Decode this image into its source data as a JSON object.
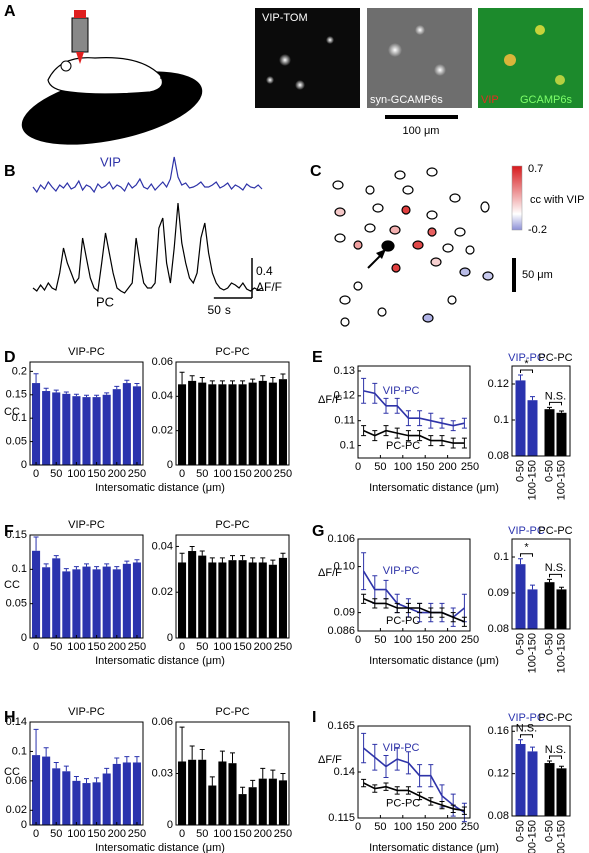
{
  "panel_labels": [
    "A",
    "B",
    "C",
    "D",
    "E",
    "F",
    "G",
    "H",
    "I"
  ],
  "panel_a": {
    "image_labels": [
      "VIP-TOM",
      "syn-GCAMP6s"
    ],
    "merge_labels": [
      "VIP",
      "GCAMP6s"
    ],
    "scale_bar": "100 μm"
  },
  "panel_c": {
    "colorbar_ticks": [
      0.7,
      -0.2
    ],
    "colorbar_label": "cc with VIP",
    "scale_bar": "50 μm"
  },
  "chart_data": [
    {
      "type": "trace",
      "x": [
        0,
        5,
        10,
        15,
        20,
        25,
        30,
        35,
        40,
        45,
        50,
        55,
        60,
        65,
        70,
        75,
        80,
        85,
        90,
        95,
        100,
        105,
        110,
        115,
        120,
        125,
        130,
        135,
        140,
        145,
        150,
        155,
        160,
        165,
        170,
        175,
        180,
        185,
        190,
        195,
        200,
        205,
        210,
        215,
        220,
        225,
        230,
        235,
        240,
        245,
        250,
        255,
        260,
        265,
        270,
        275,
        280,
        285,
        290,
        295,
        300
      ],
      "series": [
        {
          "name": "VIP",
          "color": "#2e33a8",
          "values": [
            0.1,
            0.05,
            0.12,
            0.08,
            0.15,
            0.1,
            0.06,
            0.12,
            0.09,
            0.14,
            0.08,
            0.1,
            0.16,
            0.07,
            0.12,
            0.1,
            0.05,
            0.13,
            0.09,
            0.11,
            0.15,
            0.08,
            0.12,
            0.1,
            0.06,
            0.14,
            0.09,
            0.12,
            0.18,
            0.1,
            0.08,
            0.13,
            0.07,
            0.11,
            0.15,
            0.1,
            0.18,
            0.4,
            0.2,
            0.12,
            0.14,
            0.09,
            0.1,
            0.12,
            0.15,
            0.1,
            0.1,
            0.12,
            0.15,
            0.09,
            0.11,
            0.14,
            0.08,
            0.12,
            0.1,
            0.07,
            0.13,
            0.1,
            0.09,
            0.12,
            0.08
          ]
        },
        {
          "name": "PC",
          "color": "#000000",
          "values": [
            0.05,
            0.02,
            0.08,
            0.03,
            0.1,
            0.05,
            0.03,
            0.2,
            0.45,
            0.3,
            0.2,
            0.1,
            0.15,
            0.55,
            0.35,
            0.15,
            0.05,
            0.02,
            0.3,
            0.6,
            0.4,
            0.2,
            0.05,
            0.02,
            0.0,
            0.05,
            0.1,
            0.55,
            0.3,
            0.1,
            0.05,
            0.05,
            0.1,
            0.65,
            0.75,
            0.3,
            0.1,
            0.45,
            0.9,
            0.5,
            0.3,
            0.15,
            0.1,
            0.2,
            0.55,
            0.7,
            0.4,
            0.2,
            0.1,
            0.05,
            0.03,
            0.05,
            0.1,
            0.08,
            0.05,
            0.1,
            0.04,
            0.02,
            0.05,
            0.03,
            0.05
          ]
        }
      ],
      "y_scale": {
        "value": 0.4,
        "unit": "ΔF/F"
      },
      "x_scale": {
        "value": 50,
        "unit": "s"
      }
    },
    {
      "type": "bar",
      "title": "VIP-PC",
      "ylabel": "CC",
      "xlabel": "Intersomatic distance (μm)",
      "color": "#2a33ae",
      "x": [
        0,
        25,
        50,
        75,
        100,
        125,
        150,
        175,
        200,
        225,
        250
      ],
      "values": [
        0.175,
        0.158,
        0.155,
        0.152,
        0.147,
        0.145,
        0.145,
        0.15,
        0.162,
        0.175,
        0.168
      ],
      "errors": [
        0.02,
        0.006,
        0.005,
        0.004,
        0.004,
        0.004,
        0.004,
        0.004,
        0.006,
        0.006,
        0.006
      ],
      "xlim": [
        -15,
        265
      ],
      "ylim": [
        0,
        0.22
      ],
      "xticks": [
        0,
        50,
        100,
        150,
        200,
        250
      ],
      "yticks": [
        0,
        0.05,
        0.1,
        0.15,
        0.2
      ]
    },
    {
      "type": "bar",
      "title": "PC-PC",
      "color": "#000000",
      "x": [
        0,
        25,
        50,
        75,
        100,
        125,
        150,
        175,
        200,
        225,
        250
      ],
      "values": [
        0.047,
        0.049,
        0.048,
        0.047,
        0.047,
        0.047,
        0.047,
        0.048,
        0.049,
        0.048,
        0.05
      ],
      "errors": [
        0.007,
        0.003,
        0.003,
        0.002,
        0.002,
        0.002,
        0.002,
        0.002,
        0.003,
        0.003,
        0.003
      ],
      "xlim": [
        -15,
        265
      ],
      "ylim": [
        0,
        0.06
      ],
      "xticks": [
        0,
        50,
        100,
        150,
        200,
        250
      ],
      "yticks": [
        0,
        0.02,
        0.04,
        0.06
      ]
    },
    {
      "type": "line",
      "ylabel": "ΔF/F",
      "xlabel": "Intersomatic distance (μm)",
      "x": [
        12.5,
        37.5,
        62.5,
        87.5,
        112.5,
        137.5,
        162.5,
        187.5,
        212.5,
        237.5
      ],
      "series": [
        {
          "name": "VIP-PC",
          "color": "#2e33a8",
          "values": [
            0.122,
            0.121,
            0.116,
            0.116,
            0.111,
            0.111,
            0.11,
            0.109,
            0.108,
            0.109
          ],
          "errors": [
            0.005,
            0.004,
            0.003,
            0.003,
            0.003,
            0.003,
            0.003,
            0.002,
            0.002,
            0.002
          ]
        },
        {
          "name": "PC-PC",
          "color": "#000000",
          "values": [
            0.106,
            0.104,
            0.106,
            0.105,
            0.104,
            0.104,
            0.102,
            0.102,
            0.101,
            0.101
          ],
          "errors": [
            0.002,
            0.002,
            0.002,
            0.002,
            0.002,
            0.002,
            0.002,
            0.002,
            0.002,
            0.002
          ]
        }
      ],
      "xlim": [
        0,
        250
      ],
      "ylim": [
        0.095,
        0.132
      ],
      "xticks": [
        0,
        50,
        100,
        150,
        200,
        250
      ],
      "yticks": [
        0.1,
        0.11,
        0.12,
        0.13
      ]
    },
    {
      "type": "grouped_bar",
      "categories": [
        "0-50",
        "100-150"
      ],
      "series": [
        {
          "name": "VIP-PC",
          "color": "#2a33ae",
          "values": [
            0.122,
            0.111
          ],
          "errors": [
            0.003,
            0.002
          ]
        },
        {
          "name": "PC-PC",
          "color": "#000000",
          "values": [
            0.106,
            0.104
          ],
          "errors": [
            0.001,
            0.001
          ]
        }
      ],
      "annotations": [
        "*",
        "N.S."
      ],
      "ylim": [
        0.08,
        0.13
      ],
      "yticks": [
        0.08,
        0.1,
        0.12
      ]
    },
    {
      "type": "bar",
      "title": "VIP-PC",
      "ylabel": "CC",
      "xlabel": "Intersomatic distance (μm)",
      "color": "#2a33ae",
      "x": [
        0,
        25,
        50,
        75,
        100,
        125,
        150,
        175,
        200,
        225,
        250
      ],
      "values": [
        0.127,
        0.103,
        0.116,
        0.097,
        0.1,
        0.104,
        0.1,
        0.104,
        0.1,
        0.108,
        0.11
      ],
      "errors": [
        0.02,
        0.005,
        0.004,
        0.004,
        0.004,
        0.004,
        0.004,
        0.004,
        0.004,
        0.004,
        0.004
      ],
      "xlim": [
        -15,
        265
      ],
      "ylim": [
        0,
        0.15
      ],
      "xticks": [
        0,
        50,
        100,
        150,
        200,
        250
      ],
      "yticks": [
        0,
        0.05,
        0.1,
        0.15
      ]
    },
    {
      "type": "bar",
      "title": "PC-PC",
      "color": "#000000",
      "x": [
        0,
        25,
        50,
        75,
        100,
        125,
        150,
        175,
        200,
        225,
        250
      ],
      "values": [
        0.033,
        0.038,
        0.036,
        0.033,
        0.033,
        0.034,
        0.034,
        0.033,
        0.033,
        0.032,
        0.035
      ],
      "errors": [
        0.004,
        0.002,
        0.002,
        0.002,
        0.002,
        0.002,
        0.002,
        0.002,
        0.002,
        0.002,
        0.002
      ],
      "xlim": [
        -15,
        265
      ],
      "ylim": [
        0,
        0.045
      ],
      "xticks": [
        0,
        50,
        100,
        150,
        200,
        250
      ],
      "yticks": [
        0,
        0.02,
        0.04
      ]
    },
    {
      "type": "line",
      "ylabel": "ΔF/F",
      "xlabel": "Intersomatic distance (μm)",
      "x": [
        12.5,
        37.5,
        62.5,
        87.5,
        112.5,
        137.5,
        162.5,
        187.5,
        212.5,
        237.5
      ],
      "series": [
        {
          "name": "VIP-PC",
          "color": "#2e33a8",
          "values": [
            0.099,
            0.095,
            0.095,
            0.092,
            0.091,
            0.09,
            0.09,
            0.09,
            0.089,
            0.091
          ],
          "errors": [
            0.004,
            0.003,
            0.002,
            0.002,
            0.002,
            0.002,
            0.002,
            0.002,
            0.002,
            0.003
          ]
        },
        {
          "name": "PC-PC",
          "color": "#000000",
          "values": [
            0.093,
            0.092,
            0.092,
            0.091,
            0.091,
            0.091,
            0.09,
            0.09,
            0.089,
            0.088
          ],
          "errors": [
            0.001,
            0.001,
            0.001,
            0.001,
            0.001,
            0.001,
            0.001,
            0.001,
            0.001,
            0.001
          ]
        }
      ],
      "xlim": [
        0,
        250
      ],
      "ylim": [
        0.086,
        0.106
      ],
      "xticks": [
        0,
        50,
        100,
        150,
        200,
        250
      ],
      "yticks": [
        0.086,
        0.09,
        {
          "value": 0.1,
          "label": "0.10"
        },
        0.106
      ]
    },
    {
      "type": "grouped_bar",
      "categories": [
        "0-50",
        "100-150"
      ],
      "series": [
        {
          "name": "VIP-PC",
          "color": "#2a33ae",
          "values": [
            0.098,
            0.091
          ],
          "errors": [
            0.0015,
            0.0012
          ]
        },
        {
          "name": "PC-PC",
          "color": "#000000",
          "values": [
            0.093,
            0.091
          ],
          "errors": [
            0.0008,
            0.0006
          ]
        }
      ],
      "annotations": [
        "*",
        "N.S."
      ],
      "ylim": [
        0.08,
        0.105
      ],
      "yticks": [
        0.08,
        0.09,
        0.1
      ]
    },
    {
      "type": "bar",
      "title": "VIP-PC",
      "ylabel": "CC",
      "xlabel": "Intersomatic distance (μm)",
      "color": "#2a33ae",
      "x": [
        0,
        25,
        50,
        75,
        100,
        125,
        150,
        175,
        200,
        225,
        250
      ],
      "values": [
        0.095,
        0.093,
        0.077,
        0.073,
        0.06,
        0.057,
        0.058,
        0.07,
        0.083,
        0.085,
        0.085
      ],
      "errors": [
        0.035,
        0.012,
        0.008,
        0.007,
        0.006,
        0.006,
        0.006,
        0.007,
        0.008,
        0.008,
        0.008
      ],
      "xlim": [
        -15,
        265
      ],
      "ylim": [
        0,
        0.14
      ],
      "xticks": [
        0,
        50,
        100,
        150,
        200,
        250
      ],
      "yticks": [
        0,
        0.02,
        0.06,
        0.1,
        0.14
      ]
    },
    {
      "type": "bar",
      "title": "PC-PC",
      "color": "#000000",
      "x": [
        0,
        25,
        50,
        75,
        100,
        125,
        150,
        175,
        200,
        225,
        250
      ],
      "values": [
        0.037,
        0.038,
        0.038,
        0.023,
        0.037,
        0.036,
        0.018,
        0.022,
        0.027,
        0.027,
        0.026
      ],
      "errors": [
        0.02,
        0.008,
        0.006,
        0.005,
        0.006,
        0.006,
        0.004,
        0.004,
        0.006,
        0.005,
        0.004
      ],
      "xlim": [
        -15,
        265
      ],
      "ylim": [
        0,
        0.06
      ],
      "xticks": [
        0,
        50,
        100,
        150,
        200,
        250
      ],
      "yticks": [
        0,
        0.03,
        0.06
      ]
    },
    {
      "type": "line",
      "ylabel": "ΔF/F",
      "xlabel": "Intersomatic distance (μm)",
      "x": [
        12.5,
        37.5,
        62.5,
        87.5,
        112.5,
        137.5,
        162.5,
        187.5,
        212.5,
        237.5
      ],
      "series": [
        {
          "name": "VIP-PC",
          "color": "#2e33a8",
          "values": [
            0.153,
            0.148,
            0.143,
            0.147,
            0.145,
            0.138,
            0.138,
            0.127,
            0.122,
            0.118
          ],
          "errors": [
            0.008,
            0.007,
            0.006,
            0.006,
            0.006,
            0.006,
            0.006,
            0.006,
            0.006,
            0.005
          ]
        },
        {
          "name": "PC-PC",
          "color": "#000000",
          "values": [
            0.134,
            0.131,
            0.132,
            0.13,
            0.13,
            0.127,
            0.124,
            0.122,
            0.12,
            0.119
          ],
          "errors": [
            0.002,
            0.002,
            0.002,
            0.002,
            0.002,
            0.002,
            0.002,
            0.002,
            0.002,
            0.002
          ]
        }
      ],
      "xlim": [
        0,
        250
      ],
      "ylim": [
        0.115,
        0.165
      ],
      "xticks": [
        0,
        50,
        100,
        150,
        200,
        250
      ],
      "yticks": [
        0.115,
        0.14,
        0.165
      ]
    },
    {
      "type": "grouped_bar",
      "categories": [
        "0-50",
        "100-150"
      ],
      "series": [
        {
          "name": "VIP-PC",
          "color": "#2a33ae",
          "values": [
            0.148,
            0.141
          ],
          "errors": [
            0.004,
            0.004
          ]
        },
        {
          "name": "PC-PC",
          "color": "#000000",
          "values": [
            0.13,
            0.125
          ],
          "errors": [
            0.002,
            0.002
          ]
        }
      ],
      "annotations": [
        "N.S.",
        "N.S."
      ],
      "ylim": [
        0.08,
        0.165
      ],
      "yticks": [
        0.08,
        0.12,
        0.16
      ]
    }
  ]
}
